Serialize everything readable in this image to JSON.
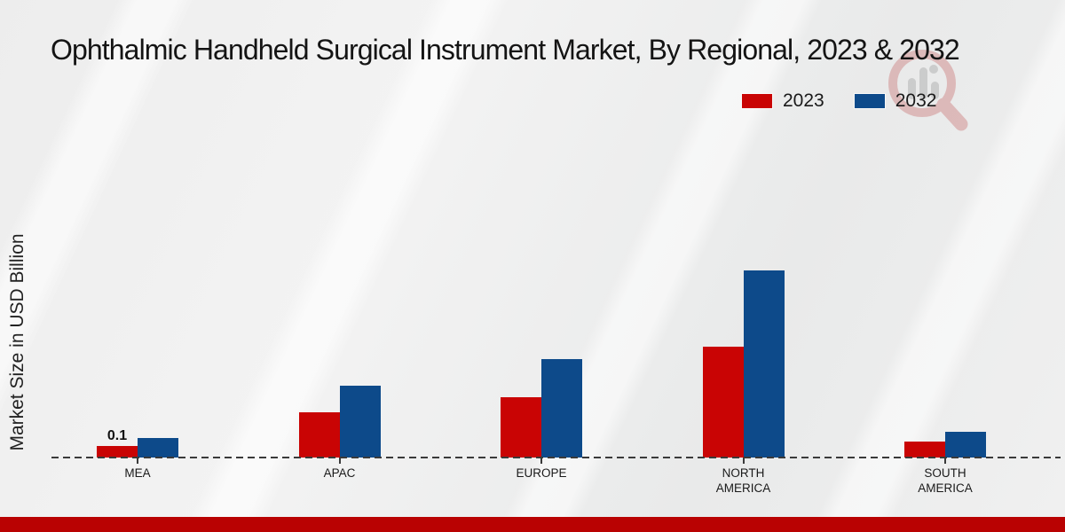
{
  "page": {
    "background_color": "#efefef",
    "bottom_bar_color": "#b90202"
  },
  "header": {
    "title": "Ophthalmic Handheld Surgical Instrument Market, By Regional, 2023 & 2032"
  },
  "watermark": {
    "icon": "magnifier-bar-chart-logo",
    "ring_color": "#c76a6a",
    "bars_color": "#9b9b9b"
  },
  "legend": {
    "items": [
      {
        "label": "2023",
        "color": "#c90404"
      },
      {
        "label": "2032",
        "color": "#0d4a8a"
      }
    ]
  },
  "chart_data": {
    "type": "bar",
    "title": "Ophthalmic Handheld Surgical Instrument Market, By Regional, 2023 & 2032",
    "xlabel": "",
    "ylabel": "Market Size in USD Billion",
    "categories": [
      "MEA",
      "APAC",
      "EUROPE",
      "NORTH AMERICA",
      "SOUTH AMERICA"
    ],
    "category_display": [
      "MEA",
      "APAC",
      "EUROPE",
      "NORTH\nAMERICA",
      "SOUTH\nAMERICA"
    ],
    "series": [
      {
        "name": "2023",
        "color": "#c90404",
        "values": [
          0.1,
          0.39,
          0.52,
          0.96,
          0.14
        ]
      },
      {
        "name": "2032",
        "color": "#0d4a8a",
        "values": [
          0.17,
          0.62,
          0.85,
          1.62,
          0.22
        ]
      }
    ],
    "annotations": [
      {
        "category_index": 0,
        "series_index": 0,
        "text": "0.1"
      }
    ],
    "ylim": [
      0,
      1.8
    ],
    "grid": false,
    "axis_line_style": "dashed",
    "legend_position": "top-right"
  }
}
